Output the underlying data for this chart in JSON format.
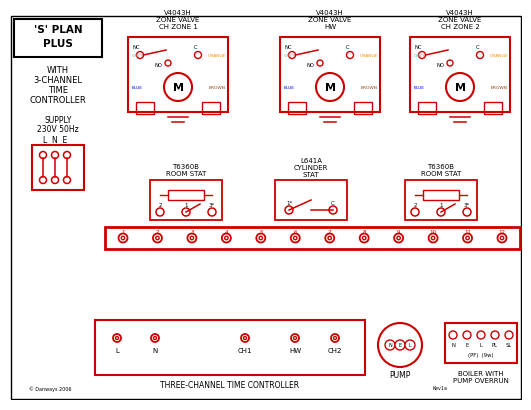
{
  "bg_color": "#ffffff",
  "box_color": "#cc0000",
  "wire_brown": "#8B4513",
  "wire_blue": "#0000EE",
  "wire_green": "#00AA00",
  "wire_orange": "#FF8C00",
  "wire_gray": "#999999",
  "wire_black": "#111111",
  "title1": "'S' PLAN",
  "title2": "PLUS",
  "subtitle": "WITH\n3-CHANNEL\nTIME\nCONTROLLER",
  "supply_text": "SUPPLY\n230V 50Hz",
  "lne_text": "L  N  E",
  "zv_labels": [
    "V4043H\nZONE VALVE\nCH ZONE 1",
    "V4043H\nZONE VALVE\nHW",
    "V4043H\nZONE VALVE\nCH ZONE 2"
  ],
  "stat1_label": "T6360B\nROOM STAT",
  "stat2_label": "L641A\nCYLINDER\nSTAT",
  "stat3_label": "T6360B\nROOM STAT",
  "controller_label": "THREE-CHANNEL TIME CONTROLLER",
  "pump_label": "PUMP",
  "boiler_label": "BOILER WITH\nPUMP OVERRUN"
}
